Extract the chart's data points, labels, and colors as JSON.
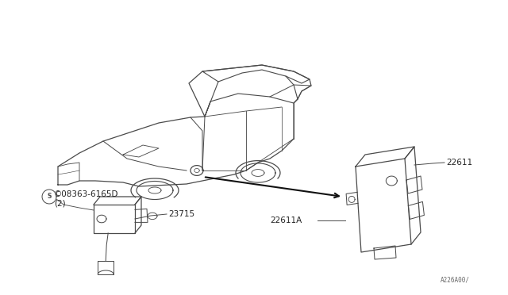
{
  "bg_color": "#ffffff",
  "line_color": "#4a4a4a",
  "text_color": "#222222",
  "fig_width": 6.4,
  "fig_height": 3.72,
  "dpi": 100,
  "labels": {
    "part_08363": "©08363-6165D\n(2)",
    "part_23715": "23715",
    "part_22611": "22611",
    "part_22611A": "22611A",
    "diagram_code": "A226A00/"
  }
}
